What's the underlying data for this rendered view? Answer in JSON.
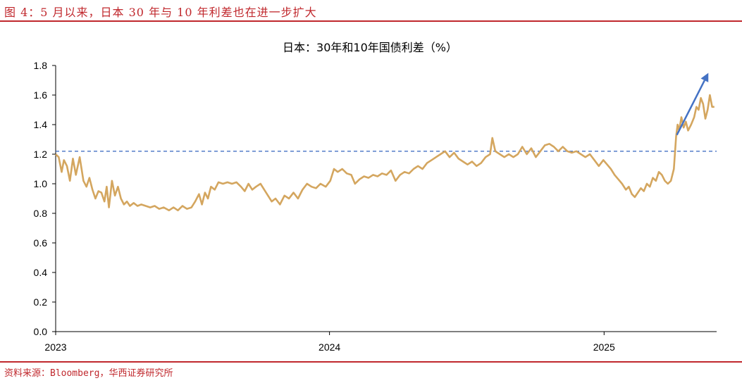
{
  "header": {
    "figure_title": "图 4：5 月以来，日本 30 年与 10 年利差也在进一步扩大"
  },
  "footer": {
    "source": "资料来源：Bloomberg，华西证券研究所"
  },
  "colors": {
    "brand_red": "#c0282d",
    "series": "#d4a65f",
    "reference": "#4472c4",
    "arrow": "#4472c4"
  },
  "chart_data": {
    "type": "line",
    "title": "日本：30年和10年国债利差（%）",
    "xlabel": "",
    "ylabel": "",
    "ylim": [
      0,
      1.8
    ],
    "yticks": [
      "0.0",
      "0.2",
      "0.4",
      "0.6",
      "0.8",
      "1.0",
      "1.2",
      "1.4",
      "1.6",
      "1.8"
    ],
    "xlim": [
      "2023-01-01",
      "2025-05-31"
    ],
    "xticks": [
      {
        "label": "2023",
        "date": "2023-01-01"
      },
      {
        "label": "2024",
        "date": "2024-01-01"
      },
      {
        "label": "2025",
        "date": "2025-01-01"
      }
    ],
    "reference_line": {
      "value": 1.22,
      "style": "dashed"
    },
    "arrow": {
      "from": {
        "date": "2025-04-08",
        "value": 1.33
      },
      "to": {
        "date": "2025-05-20",
        "value": 1.75
      }
    },
    "grid": false,
    "legend": "none",
    "series": [
      {
        "values": [
          [
            "2023-01-01",
            1.2
          ],
          [
            "2023-01-05",
            1.18
          ],
          [
            "2023-01-09",
            1.08
          ],
          [
            "2023-01-12",
            1.16
          ],
          [
            "2023-01-16",
            1.12
          ],
          [
            "2023-01-20",
            1.02
          ],
          [
            "2023-01-24",
            1.17
          ],
          [
            "2023-01-28",
            1.06
          ],
          [
            "2023-02-02",
            1.18
          ],
          [
            "2023-02-07",
            1.02
          ],
          [
            "2023-02-11",
            0.98
          ],
          [
            "2023-02-15",
            1.04
          ],
          [
            "2023-02-19",
            0.96
          ],
          [
            "2023-02-23",
            0.9
          ],
          [
            "2023-02-27",
            0.95
          ],
          [
            "2023-03-03",
            0.94
          ],
          [
            "2023-03-07",
            0.88
          ],
          [
            "2023-03-10",
            0.98
          ],
          [
            "2023-03-13",
            0.84
          ],
          [
            "2023-03-17",
            1.02
          ],
          [
            "2023-03-21",
            0.92
          ],
          [
            "2023-03-25",
            0.98
          ],
          [
            "2023-03-29",
            0.9
          ],
          [
            "2023-04-02",
            0.86
          ],
          [
            "2023-04-06",
            0.88
          ],
          [
            "2023-04-10",
            0.85
          ],
          [
            "2023-04-15",
            0.87
          ],
          [
            "2023-04-20",
            0.85
          ],
          [
            "2023-04-25",
            0.86
          ],
          [
            "2023-05-01",
            0.85
          ],
          [
            "2023-05-07",
            0.84
          ],
          [
            "2023-05-13",
            0.85
          ],
          [
            "2023-05-19",
            0.83
          ],
          [
            "2023-05-25",
            0.84
          ],
          [
            "2023-06-01",
            0.82
          ],
          [
            "2023-06-07",
            0.84
          ],
          [
            "2023-06-13",
            0.82
          ],
          [
            "2023-06-19",
            0.85
          ],
          [
            "2023-06-25",
            0.83
          ],
          [
            "2023-07-01",
            0.84
          ],
          [
            "2023-07-06",
            0.88
          ],
          [
            "2023-07-11",
            0.93
          ],
          [
            "2023-07-15",
            0.86
          ],
          [
            "2023-07-19",
            0.94
          ],
          [
            "2023-07-23",
            0.9
          ],
          [
            "2023-07-27",
            0.98
          ],
          [
            "2023-08-01",
            0.96
          ],
          [
            "2023-08-06",
            1.01
          ],
          [
            "2023-08-12",
            1.0
          ],
          [
            "2023-08-18",
            1.01
          ],
          [
            "2023-08-24",
            1.0
          ],
          [
            "2023-08-30",
            1.01
          ],
          [
            "2023-09-05",
            0.98
          ],
          [
            "2023-09-10",
            0.95
          ],
          [
            "2023-09-15",
            1.0
          ],
          [
            "2023-09-20",
            0.96
          ],
          [
            "2023-09-25",
            0.98
          ],
          [
            "2023-10-01",
            1.0
          ],
          [
            "2023-10-06",
            0.96
          ],
          [
            "2023-10-11",
            0.92
          ],
          [
            "2023-10-16",
            0.88
          ],
          [
            "2023-10-21",
            0.9
          ],
          [
            "2023-10-27",
            0.86
          ],
          [
            "2023-11-02",
            0.92
          ],
          [
            "2023-11-08",
            0.9
          ],
          [
            "2023-11-14",
            0.94
          ],
          [
            "2023-11-20",
            0.9
          ],
          [
            "2023-11-26",
            0.96
          ],
          [
            "2023-12-02",
            1.0
          ],
          [
            "2023-12-08",
            0.98
          ],
          [
            "2023-12-14",
            0.97
          ],
          [
            "2023-12-20",
            1.0
          ],
          [
            "2023-12-27",
            0.98
          ],
          [
            "2024-01-02",
            1.02
          ],
          [
            "2024-01-07",
            1.1
          ],
          [
            "2024-01-12",
            1.08
          ],
          [
            "2024-01-18",
            1.1
          ],
          [
            "2024-01-24",
            1.07
          ],
          [
            "2024-01-30",
            1.06
          ],
          [
            "2024-02-04",
            1.0
          ],
          [
            "2024-02-10",
            1.03
          ],
          [
            "2024-02-16",
            1.05
          ],
          [
            "2024-02-22",
            1.04
          ],
          [
            "2024-02-28",
            1.06
          ],
          [
            "2024-03-05",
            1.05
          ],
          [
            "2024-03-11",
            1.07
          ],
          [
            "2024-03-17",
            1.06
          ],
          [
            "2024-03-23",
            1.09
          ],
          [
            "2024-03-29",
            1.02
          ],
          [
            "2024-04-04",
            1.06
          ],
          [
            "2024-04-10",
            1.08
          ],
          [
            "2024-04-16",
            1.07
          ],
          [
            "2024-04-22",
            1.1
          ],
          [
            "2024-04-28",
            1.12
          ],
          [
            "2024-05-04",
            1.1
          ],
          [
            "2024-05-10",
            1.14
          ],
          [
            "2024-05-16",
            1.16
          ],
          [
            "2024-05-22",
            1.18
          ],
          [
            "2024-05-28",
            1.2
          ],
          [
            "2024-06-03",
            1.22
          ],
          [
            "2024-06-09",
            1.18
          ],
          [
            "2024-06-15",
            1.21
          ],
          [
            "2024-06-21",
            1.17
          ],
          [
            "2024-06-27",
            1.15
          ],
          [
            "2024-07-03",
            1.13
          ],
          [
            "2024-07-09",
            1.15
          ],
          [
            "2024-07-15",
            1.12
          ],
          [
            "2024-07-21",
            1.14
          ],
          [
            "2024-07-27",
            1.18
          ],
          [
            "2024-08-02",
            1.2
          ],
          [
            "2024-08-05",
            1.31
          ],
          [
            "2024-08-09",
            1.22
          ],
          [
            "2024-08-15",
            1.2
          ],
          [
            "2024-08-21",
            1.18
          ],
          [
            "2024-08-27",
            1.2
          ],
          [
            "2024-09-02",
            1.18
          ],
          [
            "2024-09-08",
            1.2
          ],
          [
            "2024-09-14",
            1.25
          ],
          [
            "2024-09-20",
            1.2
          ],
          [
            "2024-09-26",
            1.24
          ],
          [
            "2024-10-02",
            1.18
          ],
          [
            "2024-10-08",
            1.22
          ],
          [
            "2024-10-14",
            1.26
          ],
          [
            "2024-10-20",
            1.27
          ],
          [
            "2024-10-26",
            1.25
          ],
          [
            "2024-11-01",
            1.22
          ],
          [
            "2024-11-07",
            1.25
          ],
          [
            "2024-11-13",
            1.22
          ],
          [
            "2024-11-19",
            1.21
          ],
          [
            "2024-11-25",
            1.22
          ],
          [
            "2024-12-01",
            1.2
          ],
          [
            "2024-12-07",
            1.18
          ],
          [
            "2024-12-13",
            1.2
          ],
          [
            "2024-12-19",
            1.16
          ],
          [
            "2024-12-25",
            1.12
          ],
          [
            "2024-12-31",
            1.16
          ],
          [
            "2025-01-05",
            1.13
          ],
          [
            "2025-01-10",
            1.1
          ],
          [
            "2025-01-15",
            1.06
          ],
          [
            "2025-01-20",
            1.03
          ],
          [
            "2025-01-25",
            1.0
          ],
          [
            "2025-01-30",
            0.96
          ],
          [
            "2025-02-03",
            0.98
          ],
          [
            "2025-02-07",
            0.93
          ],
          [
            "2025-02-11",
            0.91
          ],
          [
            "2025-02-15",
            0.94
          ],
          [
            "2025-02-19",
            0.97
          ],
          [
            "2025-02-23",
            0.95
          ],
          [
            "2025-02-27",
            1.0
          ],
          [
            "2025-03-03",
            0.98
          ],
          [
            "2025-03-07",
            1.04
          ],
          [
            "2025-03-11",
            1.02
          ],
          [
            "2025-03-15",
            1.08
          ],
          [
            "2025-03-19",
            1.06
          ],
          [
            "2025-03-23",
            1.02
          ],
          [
            "2025-03-27",
            1.0
          ],
          [
            "2025-03-31",
            1.02
          ],
          [
            "2025-04-04",
            1.1
          ],
          [
            "2025-04-07",
            1.32
          ],
          [
            "2025-04-09",
            1.4
          ],
          [
            "2025-04-11",
            1.36
          ],
          [
            "2025-04-14",
            1.45
          ],
          [
            "2025-04-17",
            1.38
          ],
          [
            "2025-04-20",
            1.42
          ],
          [
            "2025-04-23",
            1.36
          ],
          [
            "2025-04-27",
            1.4
          ],
          [
            "2025-05-01",
            1.45
          ],
          [
            "2025-05-04",
            1.52
          ],
          [
            "2025-05-07",
            1.5
          ],
          [
            "2025-05-10",
            1.58
          ],
          [
            "2025-05-13",
            1.54
          ],
          [
            "2025-05-16",
            1.44
          ],
          [
            "2025-05-19",
            1.5
          ],
          [
            "2025-05-22",
            1.6
          ],
          [
            "2025-05-25",
            1.52
          ],
          [
            "2025-05-28",
            1.52
          ]
        ]
      }
    ]
  }
}
